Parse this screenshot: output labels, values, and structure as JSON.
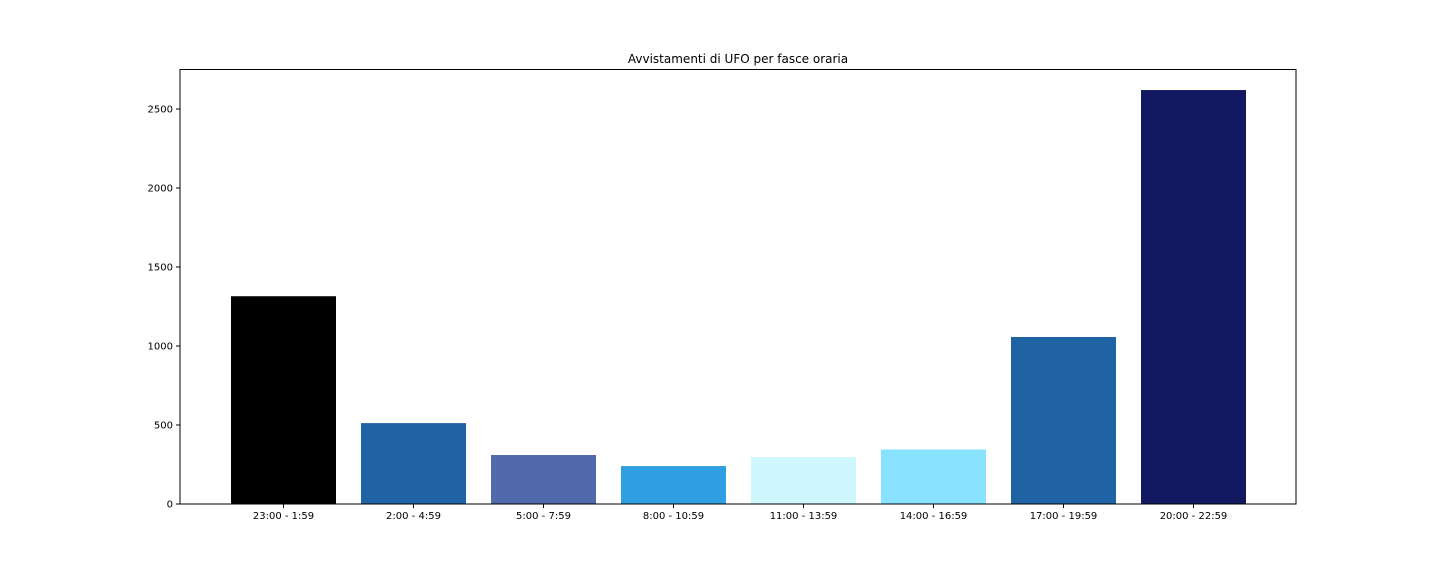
{
  "chart_data": {
    "type": "bar",
    "title": "Avvistamenti di UFO per fasce oraria",
    "xlabel": "",
    "ylabel": "",
    "categories": [
      "23:00 - 1:59",
      "2:00 - 4:59",
      "5:00 - 7:59",
      "8:00 - 10:59",
      "11:00 - 13:59",
      "14:00 - 16:59",
      "17:00 - 19:59",
      "20:00 - 22:59"
    ],
    "values": [
      1315,
      512,
      310,
      240,
      297,
      345,
      1057,
      2620
    ],
    "colors": [
      "#000000",
      "#1f63a5",
      "#516aab",
      "#2f9ee2",
      "#cef8fd",
      "#8ae3fe",
      "#1f63a5",
      "#131961"
    ],
    "ylim": [
      0,
      2750
    ],
    "yticks": [
      0,
      500,
      1000,
      1500,
      2000,
      2500
    ],
    "grid": false,
    "legend": "none"
  }
}
